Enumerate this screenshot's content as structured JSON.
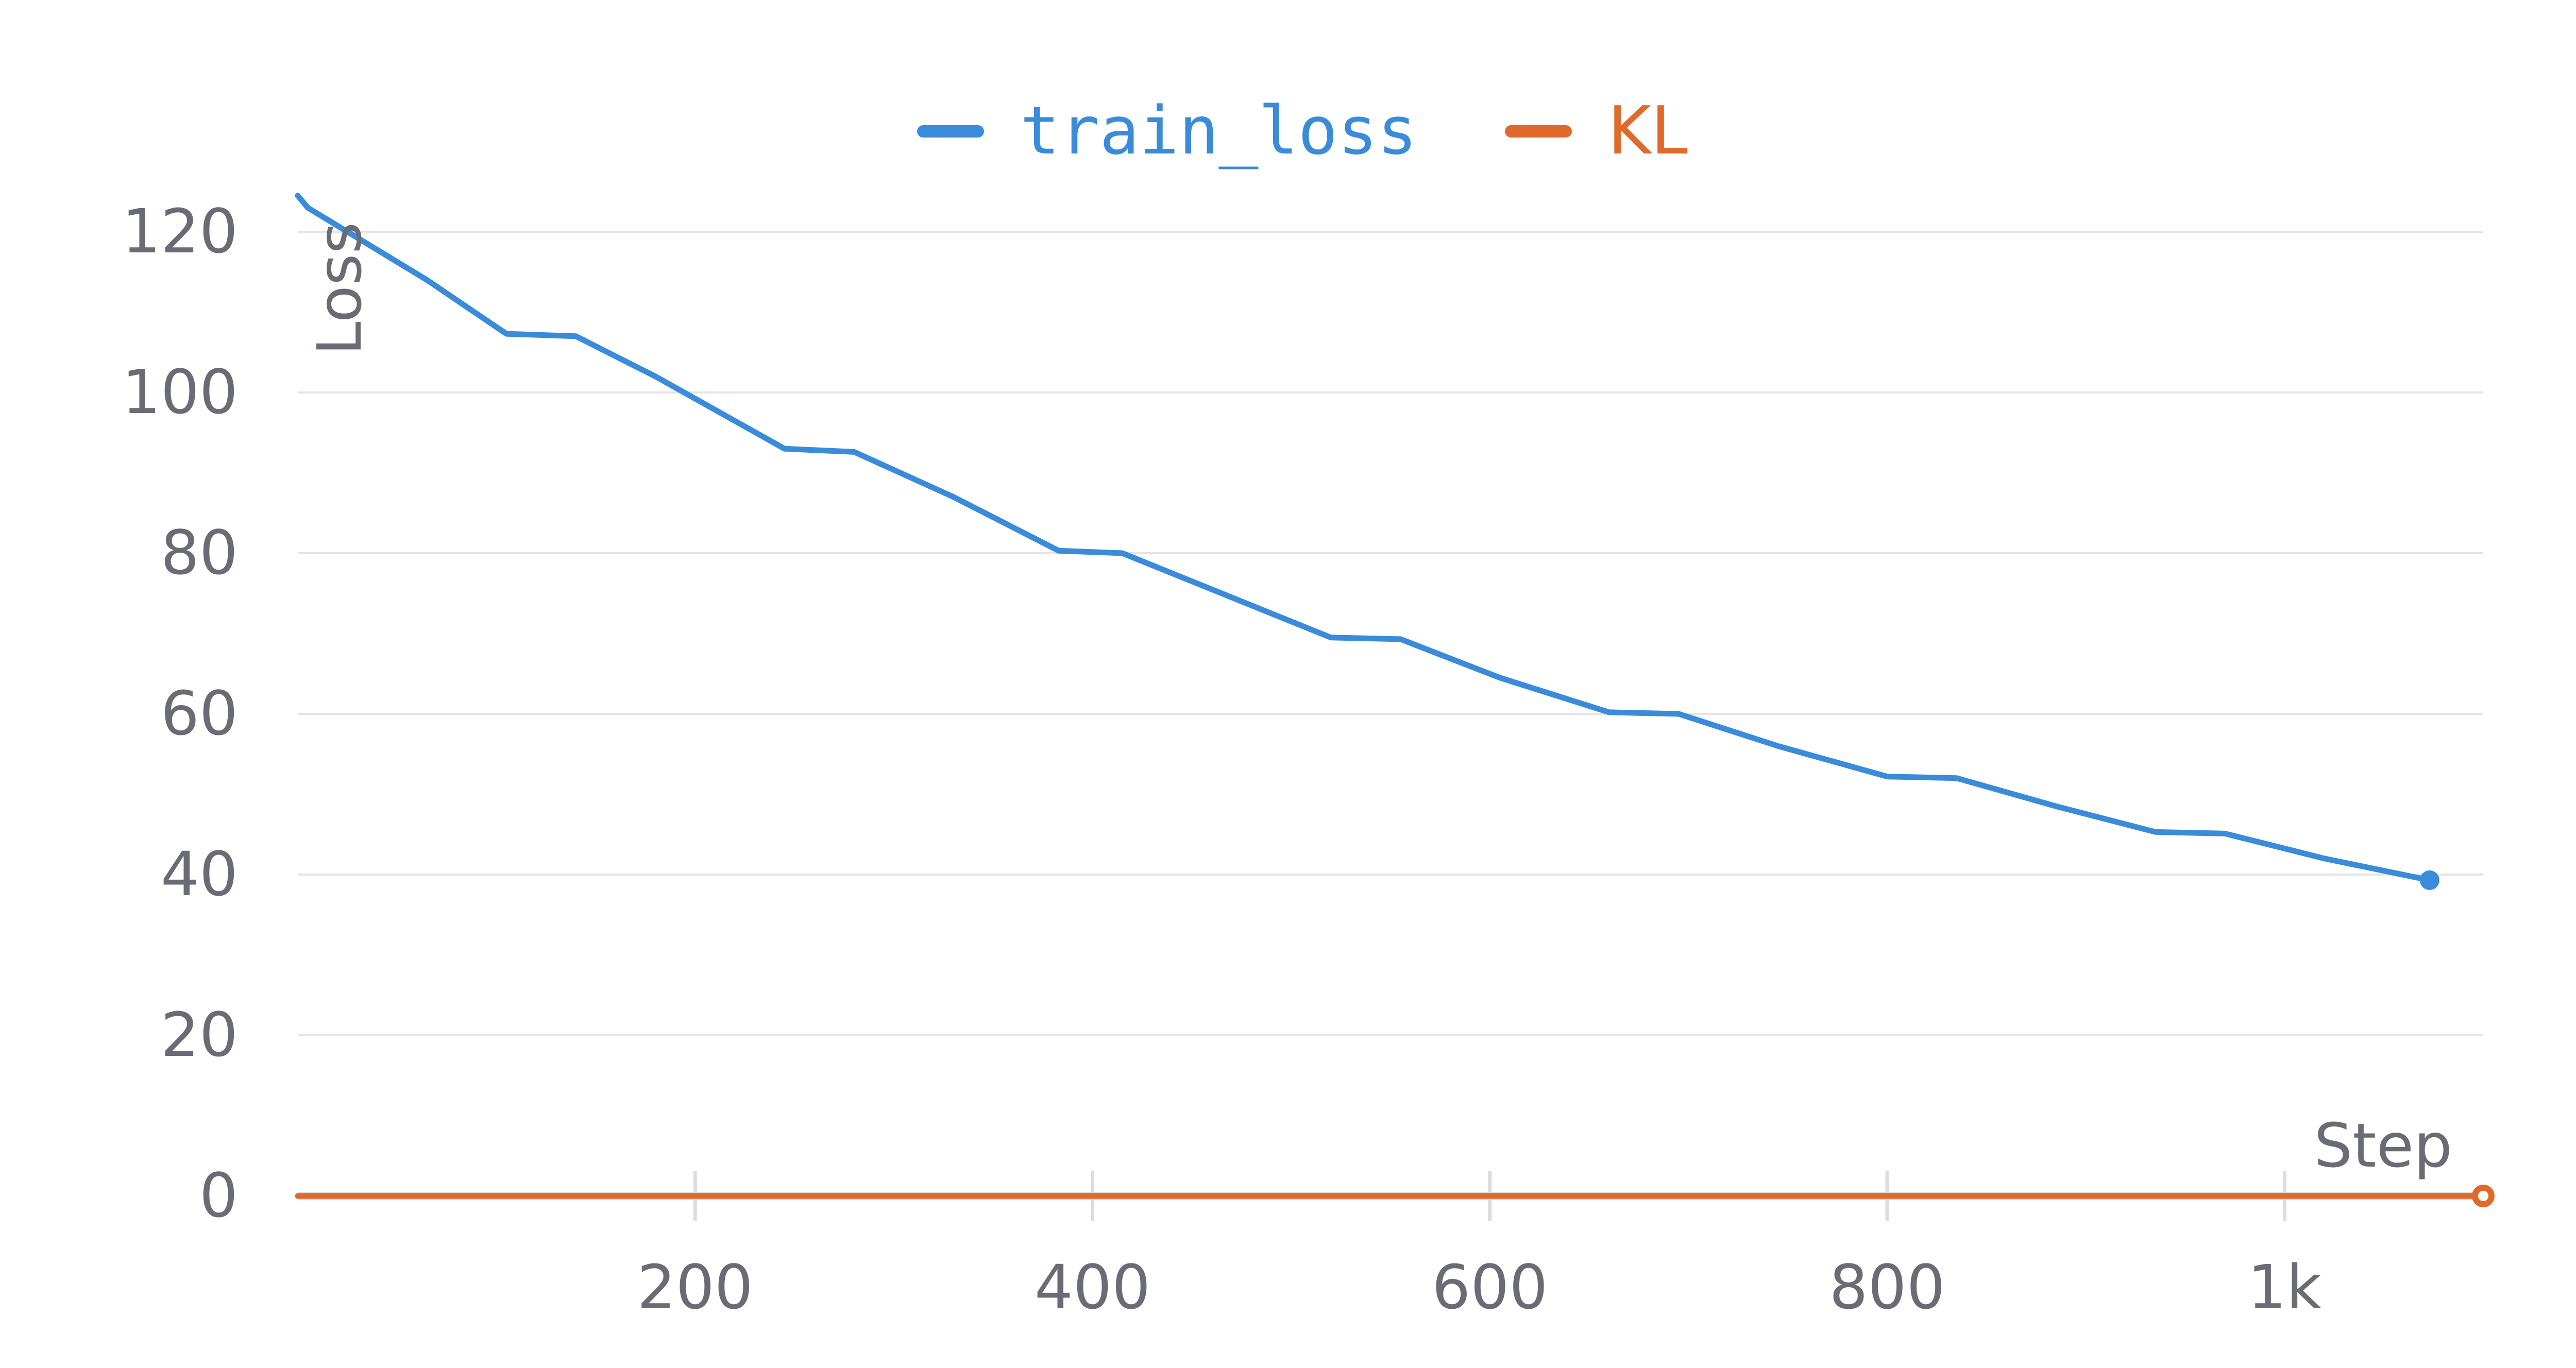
{
  "chart_data": {
    "type": "line",
    "xlabel": "Step",
    "ylabel": "Loss",
    "xlim": [
      0,
      1100
    ],
    "ylim": [
      0,
      126
    ],
    "x_ticks": [
      200,
      400,
      600,
      800,
      1000
    ],
    "x_tick_labels": [
      "200",
      "400",
      "600",
      "800",
      "1k"
    ],
    "y_ticks": [
      0,
      20,
      40,
      60,
      80,
      100,
      120
    ],
    "y_tick_labels": [
      "0",
      "20",
      "40",
      "60",
      "80",
      "100",
      "120"
    ],
    "grid": "horizontal",
    "legend_position": "top-center",
    "series": [
      {
        "name": "train_loss",
        "color": "#3a8bd9",
        "points": [
          [
            0,
            124.5
          ],
          [
            5,
            123
          ],
          [
            25,
            120
          ],
          [
            65,
            114
          ],
          [
            105,
            107.3
          ],
          [
            140,
            107
          ],
          [
            180,
            102
          ],
          [
            245,
            93
          ],
          [
            280,
            92.6
          ],
          [
            330,
            87
          ],
          [
            383,
            80.3
          ],
          [
            415,
            80
          ],
          [
            470,
            74.5
          ],
          [
            520,
            69.5
          ],
          [
            555,
            69.3
          ],
          [
            605,
            64.5
          ],
          [
            660,
            60.2
          ],
          [
            695,
            60
          ],
          [
            745,
            56
          ],
          [
            800,
            52.2
          ],
          [
            835,
            52
          ],
          [
            885,
            48.5
          ],
          [
            935,
            45.3
          ],
          [
            970,
            45.1
          ],
          [
            1020,
            42
          ],
          [
            1073,
            39.3
          ]
        ]
      },
      {
        "name": "KL",
        "color": "#e06a2c",
        "points": [
          [
            0,
            0
          ],
          [
            1100,
            0
          ]
        ]
      }
    ]
  }
}
